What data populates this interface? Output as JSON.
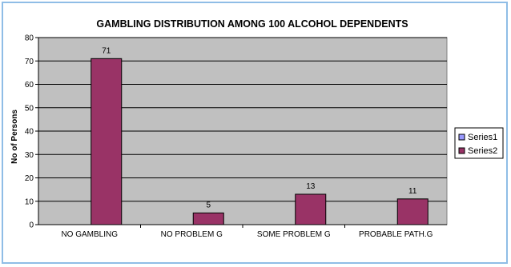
{
  "chart_data": {
    "type": "bar",
    "title": "GAMBLING DISTRIBUTION AMONG 100 ALCOHOL DEPENDENTS",
    "xlabel": "",
    "ylabel": "No of Persons",
    "categories": [
      "NO GAMBLING",
      "NO PROBLEM G",
      "SOME PROBLEM G",
      "PROBABLE PATH.G"
    ],
    "series": [
      {
        "name": "Series1",
        "values": [
          0,
          0,
          0,
          0
        ]
      },
      {
        "name": "Series2",
        "values": [
          71,
          5,
          13,
          11
        ]
      }
    ],
    "data_labels": [
      "71",
      "5",
      "13",
      "11"
    ],
    "ylim": [
      0,
      80
    ],
    "yticks": [
      0,
      10,
      20,
      30,
      40,
      50,
      60,
      70,
      80
    ],
    "grid": true,
    "legend_position": "right",
    "colors": {
      "plot_background": "#c0c0c0",
      "series1": "#9999ff",
      "series2": "#993366",
      "gridline": "#000000"
    }
  }
}
